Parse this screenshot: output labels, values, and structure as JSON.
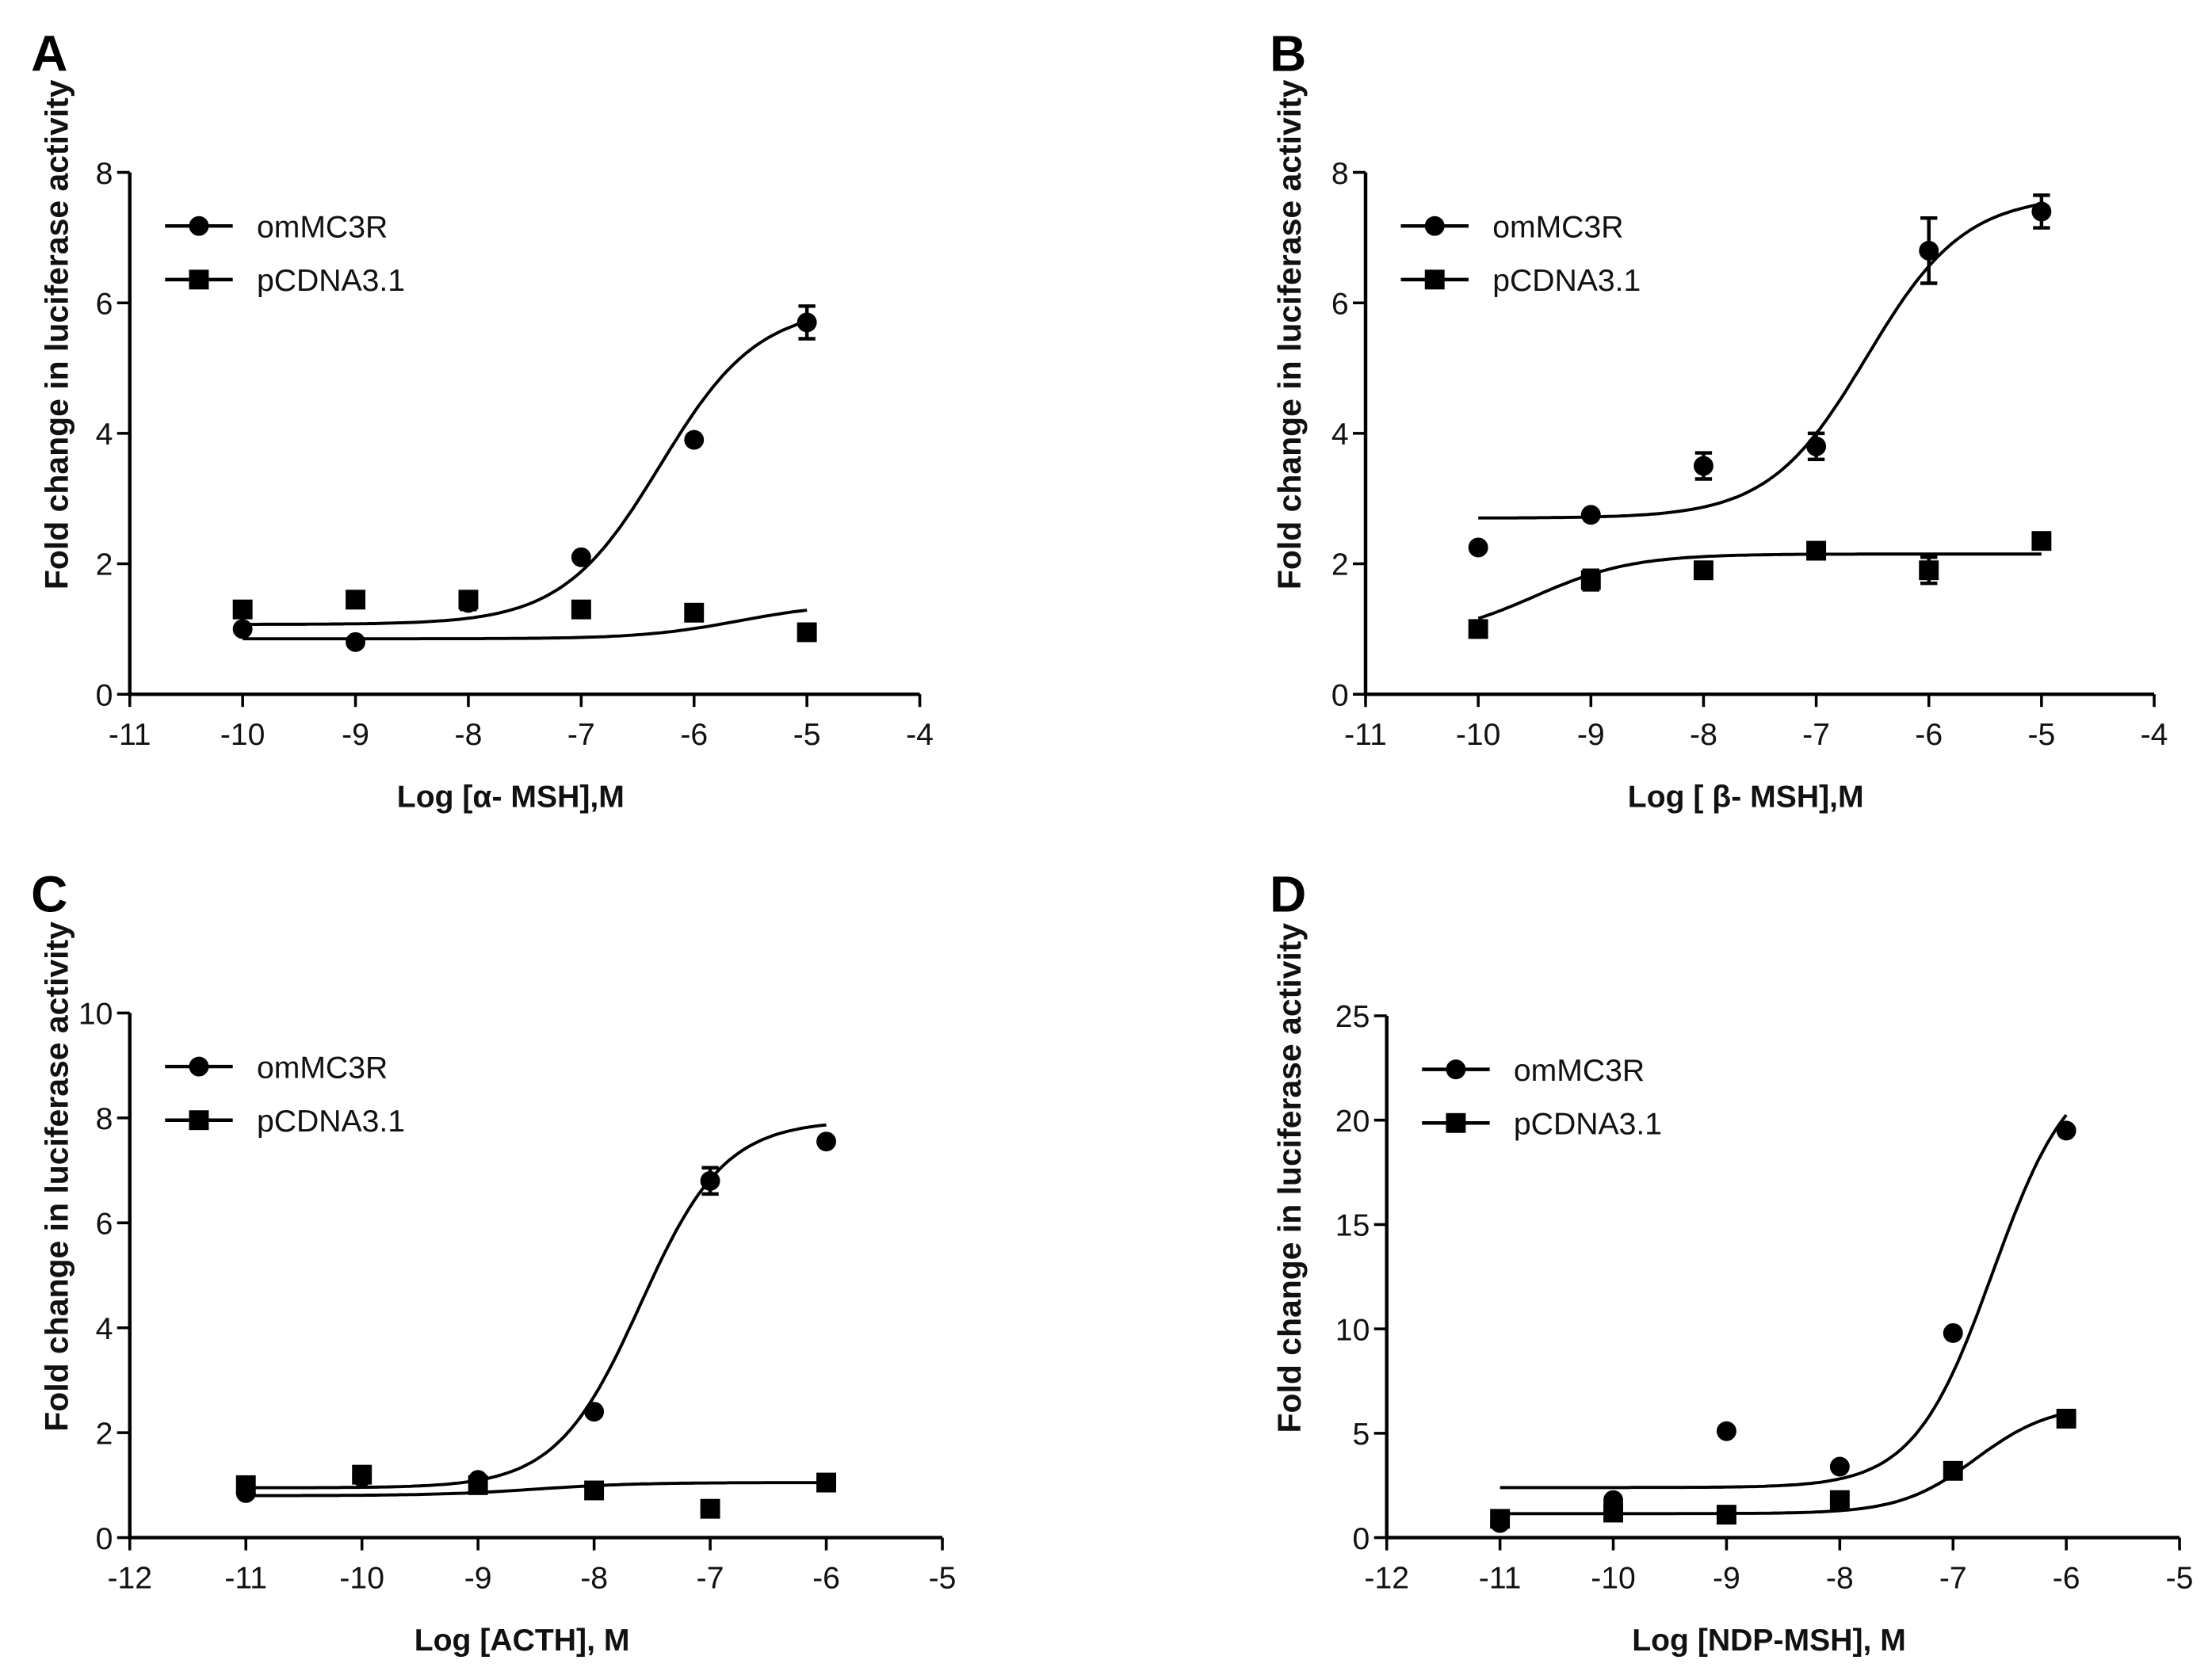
{
  "figure": {
    "series_names": [
      "omMC3R",
      "pCDNA3.1"
    ],
    "color": "#000000"
  },
  "chart_data": [
    {
      "panel": "A",
      "type": "line",
      "xlabel": "Log [α- MSH],M",
      "ylabel": "Fold  change in luciferase activity",
      "xlim": [
        -11,
        -4
      ],
      "ylim": [
        0,
        8
      ],
      "xticks": [
        "-11",
        "-10",
        "-9",
        "-8",
        "-7",
        "-6",
        "-5",
        "-4"
      ],
      "yticks": [
        "0",
        "2",
        "4",
        "6",
        "8"
      ],
      "legend": "top-left",
      "series": [
        {
          "name": "omMC3R",
          "marker": "circle",
          "x": [
            -10,
            -9,
            -8,
            -7,
            -6,
            -5
          ],
          "y": [
            1.0,
            0.8,
            1.4,
            2.1,
            3.9,
            5.7
          ],
          "err": [
            0,
            0,
            0.1,
            0,
            0,
            0.25
          ],
          "fit": {
            "bottom": 1.07,
            "top": 5.95,
            "logEC50": -6.3,
            "hill": 1.0
          }
        },
        {
          "name": "pCDNA3.1",
          "marker": "square",
          "x": [
            -10,
            -9,
            -8,
            -7,
            -6,
            -5
          ],
          "y": [
            1.3,
            1.45,
            1.45,
            1.3,
            1.25,
            0.95
          ],
          "err": [
            0,
            0,
            0,
            0,
            0,
            0
          ],
          "fit": {
            "bottom": 0.85,
            "top": 1.4,
            "logEC50": -5.6,
            "hill": 1.0
          }
        }
      ]
    },
    {
      "panel": "B",
      "type": "line",
      "xlabel": "Log [ β- MSH],M",
      "ylabel": "Fold  change in luciferase activity",
      "xlim": [
        -11,
        -4
      ],
      "ylim": [
        0,
        8
      ],
      "xticks": [
        "-11",
        "-10",
        "-9",
        "-8",
        "-7",
        "-6",
        "-5",
        "-4"
      ],
      "yticks": [
        "0",
        "2",
        "4",
        "6",
        "8"
      ],
      "legend": "top-left",
      "series": [
        {
          "name": "omMC3R",
          "marker": "circle",
          "x": [
            -10,
            -9,
            -8,
            -7,
            -6,
            -5
          ],
          "y": [
            2.25,
            2.75,
            3.5,
            3.8,
            6.8,
            7.4
          ],
          "err": [
            0,
            0,
            0.2,
            0.2,
            0.5,
            0.25
          ],
          "fit": {
            "bottom": 2.7,
            "top": 7.65,
            "logEC50": -6.55,
            "hill": 1.0
          }
        },
        {
          "name": "pCDNA3.1",
          "marker": "square",
          "x": [
            -10,
            -9,
            -8,
            -7,
            -6,
            -5
          ],
          "y": [
            1.0,
            1.75,
            1.9,
            2.2,
            1.9,
            2.35
          ],
          "err": [
            0,
            0.15,
            0.1,
            0,
            0.2,
            0.1
          ],
          "fit": {
            "bottom": 0.85,
            "top": 2.15,
            "logEC50": -9.5,
            "hill": 1.0
          }
        }
      ]
    },
    {
      "panel": "C",
      "type": "line",
      "xlabel": "Log [ACTH], M",
      "ylabel": "Fold  change in luciferase activity",
      "xlim": [
        -12,
        -5
      ],
      "ylim": [
        0,
        10
      ],
      "xticks": [
        "-12",
        "-11",
        "-10",
        "-9",
        "-8",
        "-7",
        "-6",
        "-5"
      ],
      "yticks": [
        "0",
        "2",
        "4",
        "6",
        "8",
        "10"
      ],
      "legend": "top-left",
      "series": [
        {
          "name": "omMC3R",
          "marker": "circle",
          "x": [
            -11,
            -10,
            -9,
            -8,
            -7,
            -6
          ],
          "y": [
            0.85,
            1.15,
            1.1,
            2.4,
            6.8,
            7.55
          ],
          "err": [
            0,
            0,
            0,
            0,
            0.25,
            0
          ],
          "fit": {
            "bottom": 0.95,
            "top": 7.95,
            "logEC50": -7.6,
            "hill": 1.2
          }
        },
        {
          "name": "pCDNA3.1",
          "marker": "square",
          "x": [
            -11,
            -10,
            -9,
            -8,
            -7,
            -6
          ],
          "y": [
            1.0,
            1.2,
            1.0,
            0.9,
            0.55,
            1.05
          ],
          "err": [
            0,
            0,
            0,
            0,
            0,
            0
          ],
          "fit": {
            "bottom": 0.8,
            "top": 1.05,
            "logEC50": -8.5,
            "hill": 1.0
          }
        }
      ]
    },
    {
      "panel": "D",
      "type": "line",
      "xlabel": "Log [NDP-MSH], M",
      "ylabel": "Fold  change in luciferase activity",
      "xlim": [
        -12,
        -5
      ],
      "ylim": [
        0,
        25
      ],
      "xticks": [
        "-12",
        "-11",
        "-10",
        "-9",
        "-8",
        "-7",
        "-6",
        "-5"
      ],
      "yticks": [
        "0",
        "5",
        "10",
        "15",
        "20",
        "25"
      ],
      "legend": "top-left",
      "series": [
        {
          "name": "omMC3R",
          "marker": "circle",
          "x": [
            -11,
            -10,
            -9,
            -8,
            -7,
            -6
          ],
          "y": [
            0.7,
            1.8,
            5.1,
            3.4,
            9.8,
            19.5
          ],
          "err": [
            0,
            0,
            0,
            0,
            0,
            0
          ],
          "fit": {
            "bottom": 2.4,
            "top": 23,
            "logEC50": -6.65,
            "hill": 1.25
          }
        },
        {
          "name": "pCDNA3.1",
          "marker": "square",
          "x": [
            -11,
            -10,
            -9,
            -8,
            -7,
            -6
          ],
          "y": [
            0.9,
            1.2,
            1.1,
            1.8,
            3.2,
            5.7
          ],
          "err": [
            0,
            0,
            0,
            0,
            0,
            0
          ],
          "fit": {
            "bottom": 1.15,
            "top": 6.4,
            "logEC50": -6.8,
            "hill": 1.3
          }
        }
      ]
    }
  ]
}
